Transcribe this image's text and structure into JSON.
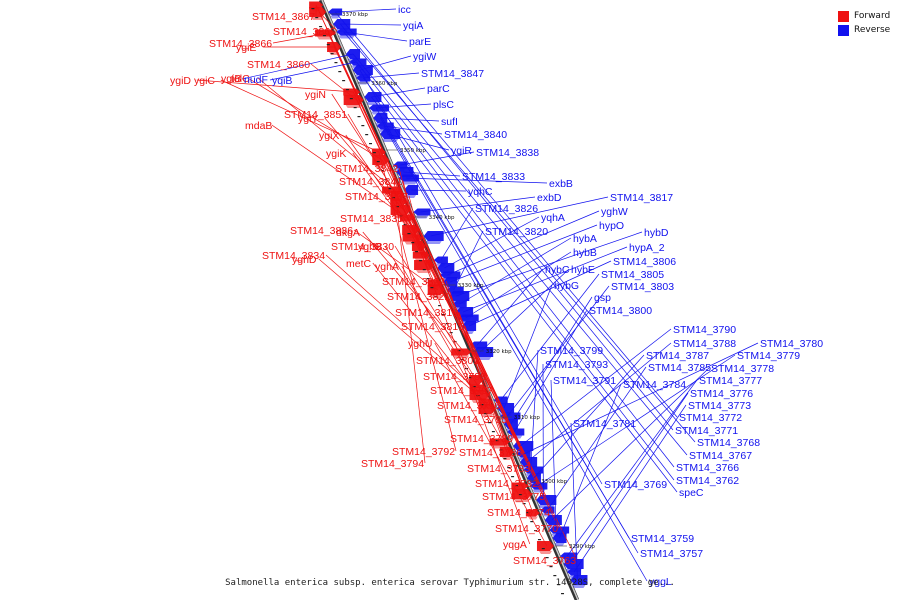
{
  "legend": {
    "forward_label": "Forward",
    "reverse_label": "Reverse",
    "forward_color": "#ee1111",
    "reverse_color": "#1111ee"
  },
  "caption": "Salmonella enterica subsp. enterica serovar Typhimurium str. 14028S, complete ge...",
  "scale_ticks": [
    "3370 kbp",
    "3360 kbp",
    "3350 kbp",
    "3340 kbp",
    "3330 kbp",
    "3320 kbp",
    "3310 kbp",
    "3300 kbp",
    "3290 kbp"
  ],
  "forward_labels": [
    "STM14_3867",
    "STM14_3865",
    "STM14_3866",
    "ygiE",
    "ygiD",
    "STM14_3860",
    "ygiC",
    "ygiB",
    "tolC",
    "ygiN",
    "STM14_3851",
    "ygiY",
    "mdaB",
    "ygiX",
    "ygiK",
    "STM14_3842",
    "STM14_3841",
    "STM14_3837",
    "STM14_3835",
    "STM14_3836",
    "dkgA",
    "STM14_3830",
    "yghB",
    "STM14_3834",
    "yghD",
    "metC",
    "yghA",
    "STM14_3822",
    "STM14_3821",
    "STM14_3819",
    "STM14_3815",
    "yghU",
    "STM14_3801",
    "STM14_3798",
    "STM14_3797",
    "STM14_3796",
    "STM14_3795",
    "STM14_3789",
    "STM14_3792",
    "STM14_3786",
    "STM14_3794",
    "STM14_3783",
    "STM14_3782",
    "STM14_3775",
    "STM14_3774",
    "STM14_3770",
    "yqgA",
    "STM14_3763"
  ],
  "reverse_labels": [
    "icc",
    "yqiA",
    "parE",
    "nudF",
    "yqiB",
    "ygiW",
    "STM14_3847",
    "parC",
    "plsC",
    "sufI",
    "STM14_3840",
    "ygiR",
    "STM14_3838",
    "STM14_3833",
    "exbB",
    "yqhC",
    "exbD",
    "STM14_3817",
    "STM14_3826",
    "yqhA",
    "yghW",
    "hypO",
    "STM14_3820",
    "hybD",
    "hybA",
    "hypA_2",
    "hybB",
    "STM14_3806",
    "hybC",
    "hybE",
    "STM14_3805",
    "hybG",
    "STM14_3803",
    "gsp",
    "STM14_3800",
    "STM14_3790",
    "STM14_3780",
    "STM14_3788",
    "STM14_3799",
    "STM14_3787",
    "STM14_3779",
    "STM14_3793",
    "STM14_3785",
    "STM14_3778",
    "STM14_3791",
    "STM14_3784",
    "STM14_3777",
    "STM14_3776",
    "STM14_3773",
    "STM14_3781",
    "STM14_3772",
    "STM14_3771",
    "STM14_3768",
    "STM14_3767",
    "STM14_3766",
    "STM14_3769",
    "STM14_3762",
    "speC",
    "STM14_3759",
    "STM14_3757",
    "yggL"
  ]
}
